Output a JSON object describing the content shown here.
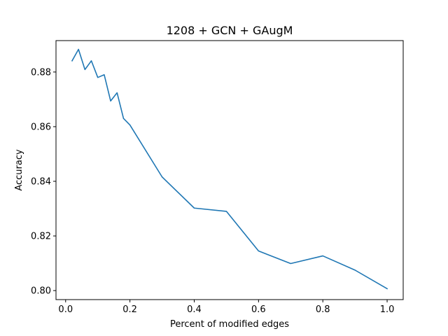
{
  "chart_data": {
    "type": "line",
    "title": "1208 + GCN + GAugM",
    "xlabel": "Percent of modified edges",
    "ylabel": "Accuracy",
    "xlim": [
      -0.03,
      1.05
    ],
    "ylim": [
      0.7967,
      0.8915
    ],
    "x_ticks": [
      0.0,
      0.2,
      0.4,
      0.6,
      0.8,
      1.0
    ],
    "x_tick_labels": [
      "0.0",
      "0.2",
      "0.4",
      "0.6",
      "0.8",
      "1.0"
    ],
    "y_ticks": [
      0.8,
      0.82,
      0.84,
      0.86,
      0.88
    ],
    "y_tick_labels": [
      "0.80",
      "0.82",
      "0.84",
      "0.86",
      "0.88"
    ],
    "grid": false,
    "series": [
      {
        "color": "#1f77b4",
        "x": [
          0.02,
          0.04,
          0.06,
          0.08,
          0.1,
          0.12,
          0.14,
          0.16,
          0.18,
          0.2,
          0.3,
          0.4,
          0.5,
          0.6,
          0.7,
          0.8,
          0.9,
          1.0
        ],
        "y": [
          0.8841,
          0.8883,
          0.8809,
          0.8841,
          0.878,
          0.879,
          0.8694,
          0.8724,
          0.863,
          0.8606,
          0.8416,
          0.8302,
          0.829,
          0.8145,
          0.8099,
          0.8127,
          0.8075,
          0.8007
        ]
      }
    ]
  }
}
